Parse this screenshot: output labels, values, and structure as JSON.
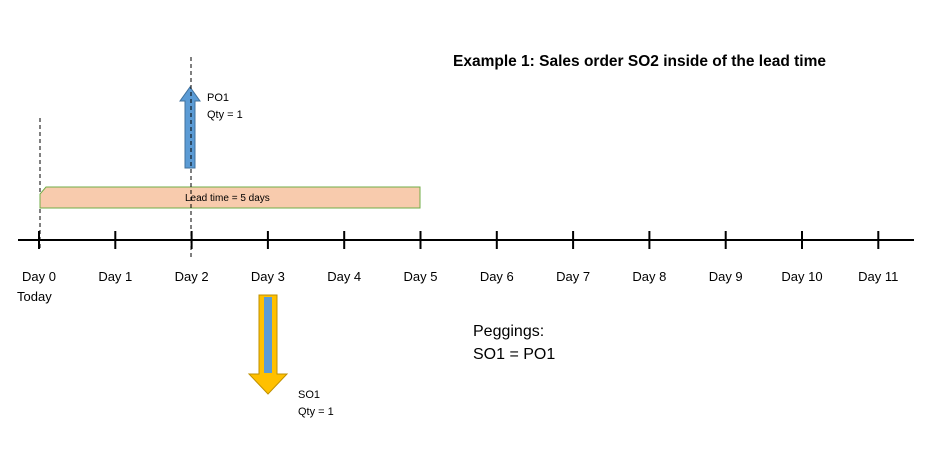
{
  "title": "Example 1: Sales order SO2 inside of the lead time",
  "timeline": {
    "days": [
      "Day 0",
      "Day 1",
      "Day 2",
      "Day 3",
      "Day 4",
      "Day 5",
      "Day 6",
      "Day 7",
      "Day 8",
      "Day 9",
      "Day 10",
      "Day 11"
    ],
    "today_label": "Today"
  },
  "lead_time": {
    "label": "Lead time = 5 days",
    "start_day": 0,
    "end_day": 5,
    "fill": "#f8cbad",
    "stroke": "#70ad47"
  },
  "purchase_order": {
    "name": "PO1",
    "qty": "Qty = 1",
    "day": 2,
    "color": "#5b9bd5"
  },
  "sales_order": {
    "name": "SO1",
    "qty": "Qty = 1",
    "day": 3,
    "color": "#ffc000",
    "inner_color": "#5b9bd5"
  },
  "peggings": {
    "heading": "Peggings:",
    "line": "SO1 = PO1"
  }
}
